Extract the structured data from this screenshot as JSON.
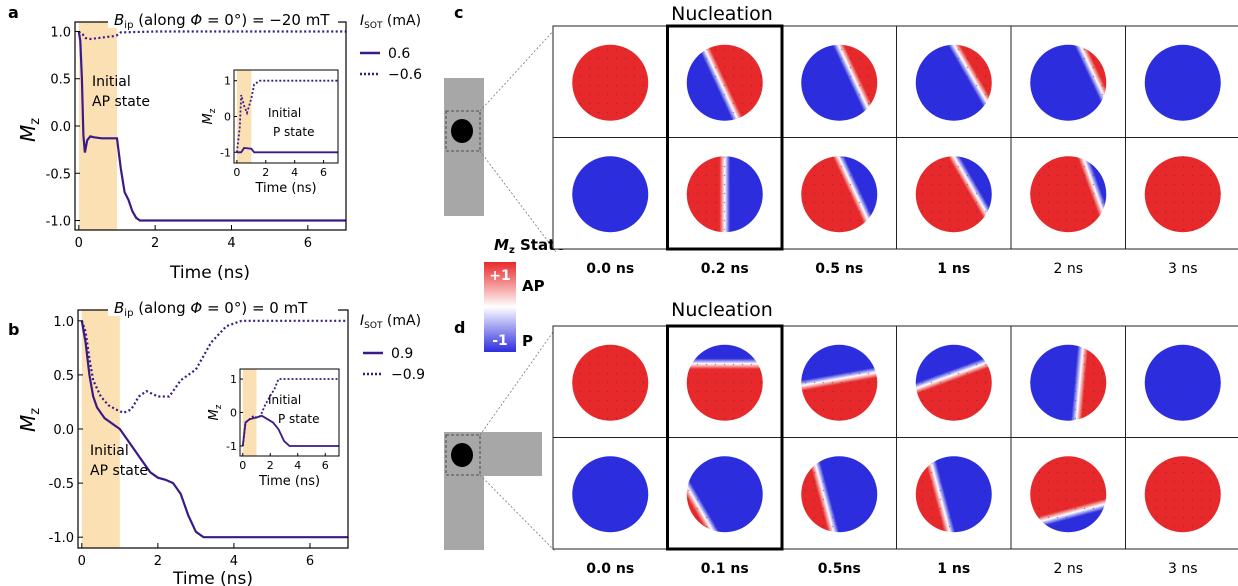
{
  "panel_letters": {
    "a": "a",
    "b": "b",
    "c": "c",
    "d": "d"
  },
  "chart_data": [
    {
      "id": "a",
      "type": "line",
      "title": "B_ip (along Φ = 0°) = −20 mT",
      "title_parts": {
        "sym": "B",
        "sub": "ip",
        "mid": " (along ",
        "phi": "Φ",
        "rest": " = 0°) = −20 mT"
      },
      "xlabel": "Time (ns)",
      "ylabel_sym": "M",
      "ylabel_sub": "z",
      "xlim": [
        -0.1,
        7.0
      ],
      "ylim": [
        -1.1,
        1.1
      ],
      "xticks": [
        0,
        2,
        4,
        6
      ],
      "yticks": [
        1.0,
        0.5,
        0.0,
        -0.5,
        -1.0
      ],
      "ytick_labels": [
        "1.0",
        "0.5",
        "0.0",
        "-0.5",
        "-1.0"
      ],
      "pulse_region": [
        0,
        1
      ],
      "legend": {
        "head_sym": "I",
        "head_sub": "SOT",
        "head_unit": " (mA)",
        "placement": "right"
      },
      "annotation": [
        "Initial",
        "AP state"
      ],
      "series": [
        {
          "name": "0.6",
          "style": "solid",
          "x": [
            0,
            0.04,
            0.08,
            0.12,
            0.16,
            0.22,
            0.3,
            0.4,
            0.6,
            0.8,
            1.0,
            1.1,
            1.2,
            1.3,
            1.4,
            1.5,
            1.6,
            2,
            3,
            4,
            5,
            6,
            7
          ],
          "y": [
            1.0,
            0.9,
            0.5,
            -0.1,
            -0.28,
            -0.15,
            -0.11,
            -0.12,
            -0.13,
            -0.13,
            -0.13,
            -0.45,
            -0.7,
            -0.78,
            -0.9,
            -0.97,
            -1.0,
            -1.0,
            -1.0,
            -1.0,
            -1.0,
            -1.0,
            -1.0
          ]
        },
        {
          "name": "−0.6",
          "style": "dotted",
          "x": [
            0,
            0.05,
            0.1,
            0.18,
            0.3,
            0.5,
            0.7,
            0.9,
            1.0,
            1.1,
            2,
            3,
            4,
            5,
            6,
            7
          ],
          "y": [
            1.0,
            0.98,
            0.97,
            0.93,
            0.92,
            0.93,
            0.94,
            0.95,
            0.96,
            0.99,
            1.0,
            1.0,
            1.0,
            1.0,
            1.0,
            1.0
          ]
        }
      ],
      "inset": {
        "xlabel": "Time (ns)",
        "ylabel_sym": "M",
        "ylabel_sub": "z",
        "xlim": [
          -0.2,
          7.0
        ],
        "ylim": [
          -1.3,
          1.3
        ],
        "xticks": [
          0,
          2,
          4,
          6
        ],
        "yticks": [
          1,
          0,
          -1
        ],
        "pulse_region": [
          0,
          1
        ],
        "annotation": [
          "Initial",
          "P state"
        ],
        "series": [
          {
            "name": "0.6",
            "style": "solid",
            "x": [
              0,
              0.3,
              0.5,
              1.0,
              1.2,
              2,
              4,
              7
            ],
            "y": [
              -1.0,
              -1.0,
              -0.88,
              -0.9,
              -1.0,
              -1.0,
              -1.0,
              -1.0
            ]
          },
          {
            "name": "−0.6",
            "style": "dotted",
            "x": [
              0,
              0.2,
              0.3,
              0.5,
              0.7,
              1.0,
              1.2,
              1.6,
              2,
              3,
              4,
              7
            ],
            "y": [
              -1.0,
              -0.3,
              0.6,
              0.3,
              0.1,
              0.5,
              0.9,
              1.0,
              1.0,
              1.0,
              1.0,
              1.0
            ]
          }
        ]
      }
    },
    {
      "id": "b",
      "type": "line",
      "title": "B_ip (along Φ = 0°) = 0 mT",
      "title_parts": {
        "sym": "B",
        "sub": "ip",
        "mid": " (along ",
        "phi": "Φ",
        "rest": " = 0°) = 0 mT"
      },
      "xlabel": "Time (ns)",
      "ylabel_sym": "M",
      "ylabel_sub": "z",
      "xlim": [
        -0.1,
        7.0
      ],
      "ylim": [
        -1.1,
        1.1
      ],
      "xticks": [
        0,
        2,
        4,
        6
      ],
      "yticks": [
        1.0,
        0.5,
        0.0,
        -0.5,
        -1.0
      ],
      "ytick_labels": [
        "1.0",
        "0.5",
        "0.0",
        "-0.5",
        "-1.0"
      ],
      "pulse_region": [
        0,
        1
      ],
      "legend": {
        "head_sym": "I",
        "head_sub": "SOT",
        "head_unit": " (mA)",
        "placement": "right"
      },
      "annotation": [
        "Initial",
        "AP state"
      ],
      "series": [
        {
          "name": "0.9",
          "style": "solid",
          "x": [
            0,
            0.1,
            0.2,
            0.3,
            0.4,
            0.6,
            0.8,
            1.0,
            1.2,
            1.4,
            1.6,
            1.8,
            2.0,
            2.2,
            2.4,
            2.6,
            2.8,
            3.0,
            3.2,
            4,
            5,
            6,
            7
          ],
          "y": [
            1.0,
            0.8,
            0.5,
            0.3,
            0.2,
            0.1,
            0.05,
            0.0,
            -0.1,
            -0.2,
            -0.3,
            -0.4,
            -0.45,
            -0.47,
            -0.5,
            -0.6,
            -0.8,
            -0.95,
            -1.0,
            -1.0,
            -1.0,
            -1.0,
            -1.0
          ]
        },
        {
          "name": "−0.9",
          "style": "dotted",
          "x": [
            0,
            0.1,
            0.2,
            0.3,
            0.5,
            0.7,
            0.9,
            1.1,
            1.3,
            1.5,
            1.7,
            2.0,
            2.3,
            2.6,
            3.0,
            3.4,
            3.8,
            4.2,
            4.6,
            5,
            6,
            7
          ],
          "y": [
            1.0,
            0.9,
            0.65,
            0.45,
            0.3,
            0.22,
            0.18,
            0.15,
            0.18,
            0.3,
            0.35,
            0.3,
            0.3,
            0.45,
            0.55,
            0.8,
            0.95,
            1.0,
            1.0,
            1.0,
            1.0,
            1.0
          ]
        }
      ],
      "inset": {
        "xlabel": "Time (ns)",
        "ylabel_sym": "M",
        "ylabel_sub": "z",
        "xlim": [
          -0.2,
          7.0
        ],
        "ylim": [
          -1.3,
          1.3
        ],
        "xticks": [
          0,
          2,
          4,
          6
        ],
        "yticks": [
          1,
          0,
          -1
        ],
        "pulse_region": [
          0,
          1
        ],
        "annotation": [
          "Initial",
          "P state"
        ],
        "series": [
          {
            "name": "0.9",
            "style": "solid",
            "x": [
              0,
              0.2,
              0.5,
              1.0,
              1.4,
              1.8,
              2.2,
              2.6,
              3.0,
              3.4,
              4,
              5,
              7
            ],
            "y": [
              -1.0,
              -0.3,
              -0.2,
              -0.15,
              -0.1,
              -0.2,
              -0.3,
              -0.5,
              -0.85,
              -1.0,
              -1.0,
              -1.0,
              -1.0
            ]
          },
          {
            "name": "−0.9",
            "style": "dotted",
            "x": [
              0,
              0.2,
              0.5,
              0.8,
              1.0,
              1.3,
              1.6,
              2.0,
              2.3,
              2.6,
              3.0,
              4,
              7
            ],
            "y": [
              -1.0,
              -0.3,
              -0.2,
              -0.1,
              -0.15,
              -0.1,
              0.2,
              0.5,
              0.7,
              1.0,
              1.0,
              1.0,
              1.0
            ]
          }
        ]
      }
    }
  ],
  "panel_c": {
    "heading": "Nucleation",
    "highlight_col": 1,
    "times": [
      "0.0 ns",
      "0.2 ns",
      "0.5 ns",
      "1 ns",
      "2 ns",
      "3 ns"
    ],
    "times_bold": [
      true,
      true,
      true,
      true,
      false,
      false
    ],
    "rows": [
      {
        "angles": [
          0,
          155,
          155,
          150,
          155,
          0
        ],
        "fracs": [
          1.0,
          0.55,
          0.3,
          0.25,
          0.15,
          0.0
        ]
      },
      {
        "angles": [
          0,
          0,
          335,
          330,
          340,
          0
        ],
        "fracs": [
          0.0,
          0.5,
          0.7,
          0.75,
          0.85,
          1.0
        ]
      }
    ],
    "device": "strip"
  },
  "panel_d": {
    "heading": "Nucleation",
    "highlight_col": 1,
    "times": [
      "0.0 ns",
      "0.1 ns",
      "0.5ns",
      "1 ns",
      "2 ns",
      "3 ns"
    ],
    "times_bold": [
      true,
      true,
      true,
      true,
      false,
      false
    ],
    "rows": [
      {
        "angles": [
          0,
          270,
          260,
          250,
          185,
          0
        ],
        "fracs": [
          1.0,
          0.75,
          0.55,
          0.6,
          0.35,
          0.0
        ]
      },
      {
        "angles": [
          0,
          330,
          345,
          345,
          75,
          0
        ],
        "fracs": [
          0.0,
          0.12,
          0.3,
          0.32,
          0.75,
          1.0
        ]
      }
    ],
    "device": "cross"
  },
  "colorbar": {
    "title_sym": "M",
    "title_sub": "z",
    "title_rest": " State",
    "top_label": "+1",
    "bottom_label": "-1",
    "top_state": "AP",
    "bottom_state": "P",
    "top_color": "#e8292b",
    "mid_color": "#ffffff",
    "bottom_color": "#2d2de0"
  },
  "colors": {
    "line": "#3a1a86",
    "pulse": "#fbe0b4",
    "red": "#e8292b",
    "blue": "#2d2de0",
    "device": "#a7a7a7"
  }
}
